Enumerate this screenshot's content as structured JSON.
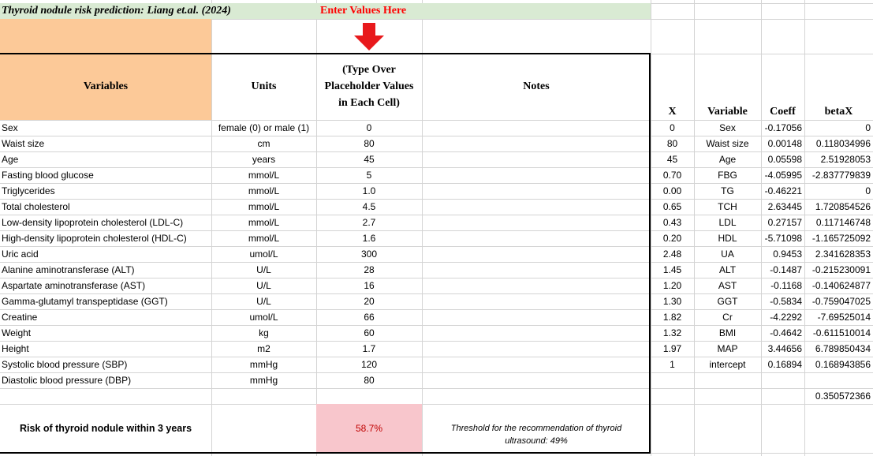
{
  "title": "Thyroid nodule risk prediction: Liang et.al. (2024)",
  "enter_values": "Enter Values Here",
  "headers": {
    "variables": "Variables",
    "units": "Units",
    "type_over_l1": "(Type Over",
    "type_over_l2": "Placeholder Values",
    "type_over_l3": "in Each Cell)",
    "notes": "Notes"
  },
  "rows": [
    {
      "variable": "Sex",
      "unit": "female (0) or male (1)",
      "value": "0"
    },
    {
      "variable": "Waist size",
      "unit": "cm",
      "value": "80"
    },
    {
      "variable": "Age",
      "unit": "years",
      "value": "45"
    },
    {
      "variable": "Fasting blood glucose",
      "unit": "mmol/L",
      "value": "5"
    },
    {
      "variable": "Triglycerides",
      "unit": "mmol/L",
      "value": "1.0"
    },
    {
      "variable": "Total cholesterol",
      "unit": "mmol/L",
      "value": "4.5"
    },
    {
      "variable": "Low-density lipoprotein cholesterol (LDL-C)",
      "unit": "mmol/L",
      "value": "2.7"
    },
    {
      "variable": "High-density lipoprotein cholesterol (HDL-C)",
      "unit": "mmol/L",
      "value": "1.6"
    },
    {
      "variable": "Uric acid",
      "unit": "umol/L",
      "value": "300"
    },
    {
      "variable": "Alanine aminotransferase (ALT)",
      "unit": "U/L",
      "value": "28"
    },
    {
      "variable": "Aspartate aminotransferase (AST)",
      "unit": "U/L",
      "value": "16"
    },
    {
      "variable": "Gamma-glutamyl transpeptidase (GGT)",
      "unit": "U/L",
      "value": "20"
    },
    {
      "variable": "Creatine",
      "unit": "umol/L",
      "value": "66"
    },
    {
      "variable": "Weight",
      "unit": "kg",
      "value": "60"
    },
    {
      "variable": "Height",
      "unit": "m2",
      "value": "1.7"
    },
    {
      "variable": "Systolic blood pressure (SBP)",
      "unit": "mmHg",
      "value": "120"
    },
    {
      "variable": "Diastolic blood pressure (DBP)",
      "unit": "mmHg",
      "value": "80"
    }
  ],
  "calc_headers": {
    "x": "X",
    "variable": "Variable",
    "coeff": "Coeff",
    "betax": "betaX"
  },
  "calc_rows": [
    {
      "x": "0",
      "variable": "Sex",
      "coeff": "-0.17056",
      "betax": "0"
    },
    {
      "x": "80",
      "variable": "Waist size",
      "coeff": "0.00148",
      "betax": "0.118034996"
    },
    {
      "x": "45",
      "variable": "Age",
      "coeff": "0.05598",
      "betax": "2.51928053"
    },
    {
      "x": "0.70",
      "variable": "FBG",
      "coeff": "-4.05995",
      "betax": "-2.837779839"
    },
    {
      "x": "0.00",
      "variable": "TG",
      "coeff": "-0.46221",
      "betax": "0"
    },
    {
      "x": "0.65",
      "variable": "TCH",
      "coeff": "2.63445",
      "betax": "1.720854526"
    },
    {
      "x": "0.43",
      "variable": "LDL",
      "coeff": "0.27157",
      "betax": "0.117146748"
    },
    {
      "x": "0.20",
      "variable": "HDL",
      "coeff": "-5.71098",
      "betax": "-1.165725092"
    },
    {
      "x": "2.48",
      "variable": "UA",
      "coeff": "0.9453",
      "betax": "2.341628353"
    },
    {
      "x": "1.45",
      "variable": "ALT",
      "coeff": "-0.1487",
      "betax": "-0.215230091"
    },
    {
      "x": "1.20",
      "variable": "AST",
      "coeff": "-0.1168",
      "betax": "-0.140624877"
    },
    {
      "x": "1.30",
      "variable": "GGT",
      "coeff": "-0.5834",
      "betax": "-0.759047025"
    },
    {
      "x": "1.82",
      "variable": "Cr",
      "coeff": "-4.2292",
      "betax": "-7.69525014"
    },
    {
      "x": "1.32",
      "variable": "BMI",
      "coeff": "-0.4642",
      "betax": "-0.611510014"
    },
    {
      "x": "1.97",
      "variable": "MAP",
      "coeff": "3.44656",
      "betax": "6.789850434"
    },
    {
      "x": "1",
      "variable": "intercept",
      "coeff": "0.16894",
      "betax": "0.168943856"
    }
  ],
  "sum_betax": "0.350572366",
  "risk_label": "Risk of thyroid nodule within 3 years",
  "risk_value": "58.7%",
  "threshold_l1": "Threshold for the recommendation of thyroid",
  "threshold_l2": "ultrasound: 49%",
  "colors": {
    "title_fill": "#d9ead3",
    "title_text": "#000000",
    "enter_text": "#ff0000",
    "variables_fill": "#fcc998",
    "risk_fill": "#f8c6cc",
    "risk_text": "#c00000",
    "arrow": "#e8191c",
    "gridline": "#d4d4d4"
  },
  "icons": {
    "arrow": "down-arrow-icon"
  }
}
